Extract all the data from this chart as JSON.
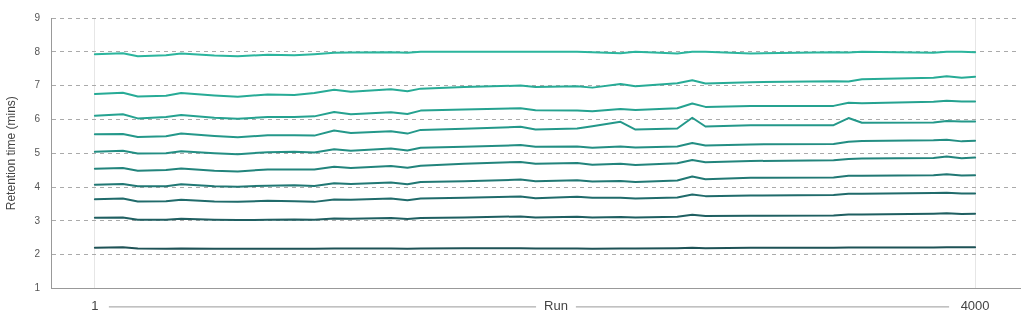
{
  "chart_data": {
    "type": "line",
    "xlabel": "Run",
    "ylabel": "Retention time (mins)",
    "x": [
      1,
      128,
      196,
      324,
      393,
      544,
      650,
      786,
      907,
      998,
      1088,
      1164,
      1346,
      1421,
      1481,
      1678,
      1935,
      2003,
      2192,
      2261,
      2389,
      2457,
      2647,
      2715,
      2775,
      2980,
      3357,
      3425,
      3486,
      3811,
      3871,
      3939,
      4000
    ],
    "xlim": [
      -194,
      4204
    ],
    "xticks": [
      1,
      4000
    ],
    "ylim": [
      1,
      9
    ],
    "yticks": [
      1,
      2,
      3,
      4,
      5,
      6,
      7,
      8,
      9
    ],
    "grid": true,
    "legend": false,
    "marker": "none",
    "line_style": "solid",
    "series": [
      {
        "color": "#2bb59d",
        "values": [
          7.93,
          7.96,
          7.87,
          7.9,
          7.95,
          7.89,
          7.87,
          7.91,
          7.9,
          7.93,
          7.97,
          7.98,
          7.99,
          7.97,
          8.0,
          8.0,
          8.0,
          8.0,
          8.0,
          7.99,
          7.96,
          8.0,
          7.95,
          8.0,
          8.0,
          7.95,
          7.99,
          7.98,
          8.0,
          7.97,
          8.0,
          8.0,
          7.99
        ]
      },
      {
        "color": "#27ab96",
        "values": [
          6.75,
          6.79,
          6.68,
          6.7,
          6.78,
          6.71,
          6.67,
          6.74,
          6.72,
          6.78,
          6.88,
          6.82,
          6.89,
          6.83,
          6.91,
          6.96,
          7.0,
          6.96,
          6.98,
          6.94,
          7.05,
          6.98,
          7.07,
          7.16,
          7.06,
          7.1,
          7.13,
          7.12,
          7.19,
          7.23,
          7.28,
          7.23,
          7.26
        ]
      },
      {
        "color": "#25a290",
        "values": [
          6.11,
          6.15,
          6.03,
          6.07,
          6.13,
          6.05,
          6.02,
          6.07,
          6.07,
          6.09,
          6.22,
          6.15,
          6.21,
          6.16,
          6.26,
          6.29,
          6.33,
          6.27,
          6.26,
          6.24,
          6.31,
          6.28,
          6.33,
          6.47,
          6.37,
          6.4,
          6.4,
          6.49,
          6.48,
          6.52,
          6.55,
          6.53,
          6.53
        ]
      },
      {
        "color": "#24988a",
        "values": [
          5.56,
          5.57,
          5.48,
          5.5,
          5.58,
          5.51,
          5.47,
          5.53,
          5.53,
          5.52,
          5.67,
          5.6,
          5.65,
          5.58,
          5.69,
          5.72,
          5.78,
          5.7,
          5.73,
          5.8,
          5.93,
          5.7,
          5.73,
          6.05,
          5.79,
          5.83,
          5.83,
          6.04,
          5.9,
          5.91,
          5.95,
          5.94,
          5.94
        ]
      },
      {
        "color": "#238e83",
        "values": [
          5.04,
          5.07,
          4.99,
          5.0,
          5.06,
          5.0,
          4.97,
          5.03,
          5.04,
          5.02,
          5.12,
          5.07,
          5.14,
          5.08,
          5.16,
          5.19,
          5.24,
          5.19,
          5.2,
          5.16,
          5.2,
          5.17,
          5.2,
          5.3,
          5.23,
          5.26,
          5.27,
          5.34,
          5.36,
          5.38,
          5.4,
          5.35,
          5.37
        ]
      },
      {
        "color": "#22847c",
        "values": [
          4.54,
          4.56,
          4.48,
          4.5,
          4.55,
          4.48,
          4.46,
          4.52,
          4.52,
          4.52,
          4.6,
          4.56,
          4.62,
          4.57,
          4.63,
          4.69,
          4.74,
          4.69,
          4.71,
          4.66,
          4.69,
          4.65,
          4.7,
          4.8,
          4.73,
          4.77,
          4.79,
          4.83,
          4.84,
          4.86,
          4.9,
          4.85,
          4.87
        ]
      },
      {
        "color": "#217874",
        "values": [
          4.07,
          4.09,
          4.02,
          4.02,
          4.08,
          4.02,
          4.01,
          4.04,
          4.05,
          4.03,
          4.11,
          4.09,
          4.13,
          4.08,
          4.15,
          4.17,
          4.22,
          4.17,
          4.2,
          4.16,
          4.18,
          4.15,
          4.19,
          4.31,
          4.23,
          4.27,
          4.28,
          4.33,
          4.33,
          4.35,
          4.38,
          4.34,
          4.35
        ]
      },
      {
        "color": "#206b6b",
        "values": [
          3.64,
          3.66,
          3.57,
          3.58,
          3.62,
          3.57,
          3.56,
          3.59,
          3.58,
          3.56,
          3.63,
          3.62,
          3.66,
          3.61,
          3.66,
          3.68,
          3.72,
          3.67,
          3.71,
          3.68,
          3.68,
          3.66,
          3.69,
          3.78,
          3.73,
          3.75,
          3.76,
          3.8,
          3.8,
          3.82,
          3.83,
          3.81,
          3.81
        ]
      },
      {
        "color": "#1f5f61",
        "values": [
          3.09,
          3.1,
          3.03,
          3.03,
          3.06,
          3.03,
          3.02,
          3.03,
          3.04,
          3.03,
          3.07,
          3.06,
          3.08,
          3.05,
          3.08,
          3.1,
          3.13,
          3.1,
          3.12,
          3.1,
          3.11,
          3.1,
          3.12,
          3.18,
          3.14,
          3.15,
          3.16,
          3.19,
          3.19,
          3.21,
          3.22,
          3.2,
          3.21
        ]
      },
      {
        "color": "#1e5256",
        "values": [
          2.2,
          2.22,
          2.18,
          2.17,
          2.18,
          2.17,
          2.17,
          2.17,
          2.17,
          2.17,
          2.18,
          2.18,
          2.18,
          2.17,
          2.18,
          2.19,
          2.19,
          2.18,
          2.18,
          2.17,
          2.18,
          2.18,
          2.19,
          2.2,
          2.19,
          2.2,
          2.2,
          2.21,
          2.21,
          2.21,
          2.22,
          2.22,
          2.22
        ]
      }
    ]
  }
}
